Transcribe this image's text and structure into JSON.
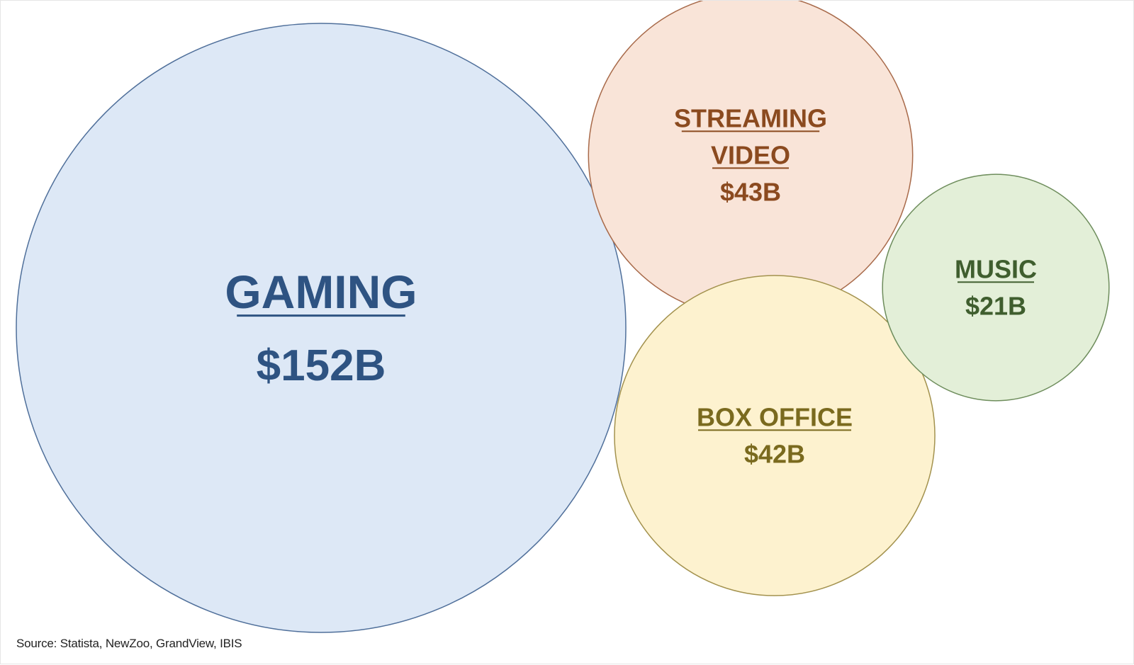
{
  "chart_data": {
    "type": "bubble",
    "unit": "$B",
    "series": [
      {
        "name": "GAMING",
        "value": 152,
        "display_value": "$152B",
        "color": "#dde8f6",
        "stroke": "#4f6f9a",
        "text_color": "#2e5382"
      },
      {
        "name": "STREAMING VIDEO",
        "value": 43,
        "display_value": "$43B",
        "color": "#f9e4d8",
        "stroke": "#a86a4a",
        "text_color": "#8b4a1f"
      },
      {
        "name": "BOX OFFICE",
        "value": 42,
        "display_value": "$42B",
        "color": "#fdf2cf",
        "stroke": "#a3924e",
        "text_color": "#7a6a1e"
      },
      {
        "name": "MUSIC",
        "value": 21,
        "display_value": "$21B",
        "color": "#e3efd8",
        "stroke": "#6e8d5c",
        "text_color": "#3f5e2e"
      }
    ]
  },
  "source": "Source: Statista, NewZoo, GrandView, IBIS"
}
